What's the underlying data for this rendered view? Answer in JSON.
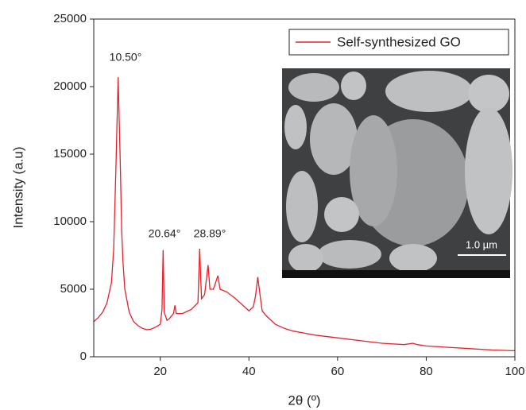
{
  "chart_data": {
    "type": "line",
    "x_label": "2θ (º)",
    "y_label": "Intensity (a.u)",
    "xlim": [
      5,
      100
    ],
    "ylim": [
      0,
      25000
    ],
    "xticks": [
      20,
      40,
      60,
      80,
      100
    ],
    "yticks": [
      0,
      5000,
      10000,
      15000,
      20000,
      25000
    ],
    "legend": "upper right",
    "annotations": [
      "10.50°",
      "20.64°",
      "28.89°"
    ],
    "inset_scale_label": "1.0 µm",
    "x": [
      5,
      6,
      7,
      8,
      9,
      9.5,
      10,
      10.5,
      11,
      11.3,
      11.6,
      12,
      13,
      14,
      15,
      16,
      17,
      18,
      19,
      20,
      20.4,
      20.64,
      20.9,
      21.5,
      22,
      23,
      23.3,
      23.6,
      25,
      27,
      28.5,
      28.89,
      29.3,
      30,
      30.8,
      31.2,
      32,
      33,
      33.5,
      35,
      37,
      39,
      40,
      41,
      41.5,
      42,
      42.5,
      43,
      44,
      46,
      48,
      50,
      55,
      60,
      65,
      70,
      75,
      77,
      78,
      80,
      85,
      90,
      95,
      100
    ],
    "series": [
      {
        "name": "Self-synthesized GO",
        "color": "#e8202a",
        "values": [
          2600,
          2900,
          3300,
          4000,
          5500,
          8000,
          14000,
          20700,
          14000,
          9400,
          7000,
          5000,
          3300,
          2600,
          2300,
          2100,
          2000,
          2050,
          2200,
          2400,
          3500,
          7900,
          3300,
          2700,
          2800,
          3200,
          3800,
          3200,
          3200,
          3500,
          4000,
          8000,
          4300,
          4600,
          6800,
          5000,
          5000,
          6000,
          5000,
          4800,
          4300,
          3700,
          3400,
          3700,
          4500,
          5900,
          4600,
          3400,
          3000,
          2400,
          2100,
          1900,
          1600,
          1400,
          1200,
          1000,
          900,
          1000,
          900,
          800,
          700,
          600,
          500,
          450
        ]
      }
    ]
  }
}
